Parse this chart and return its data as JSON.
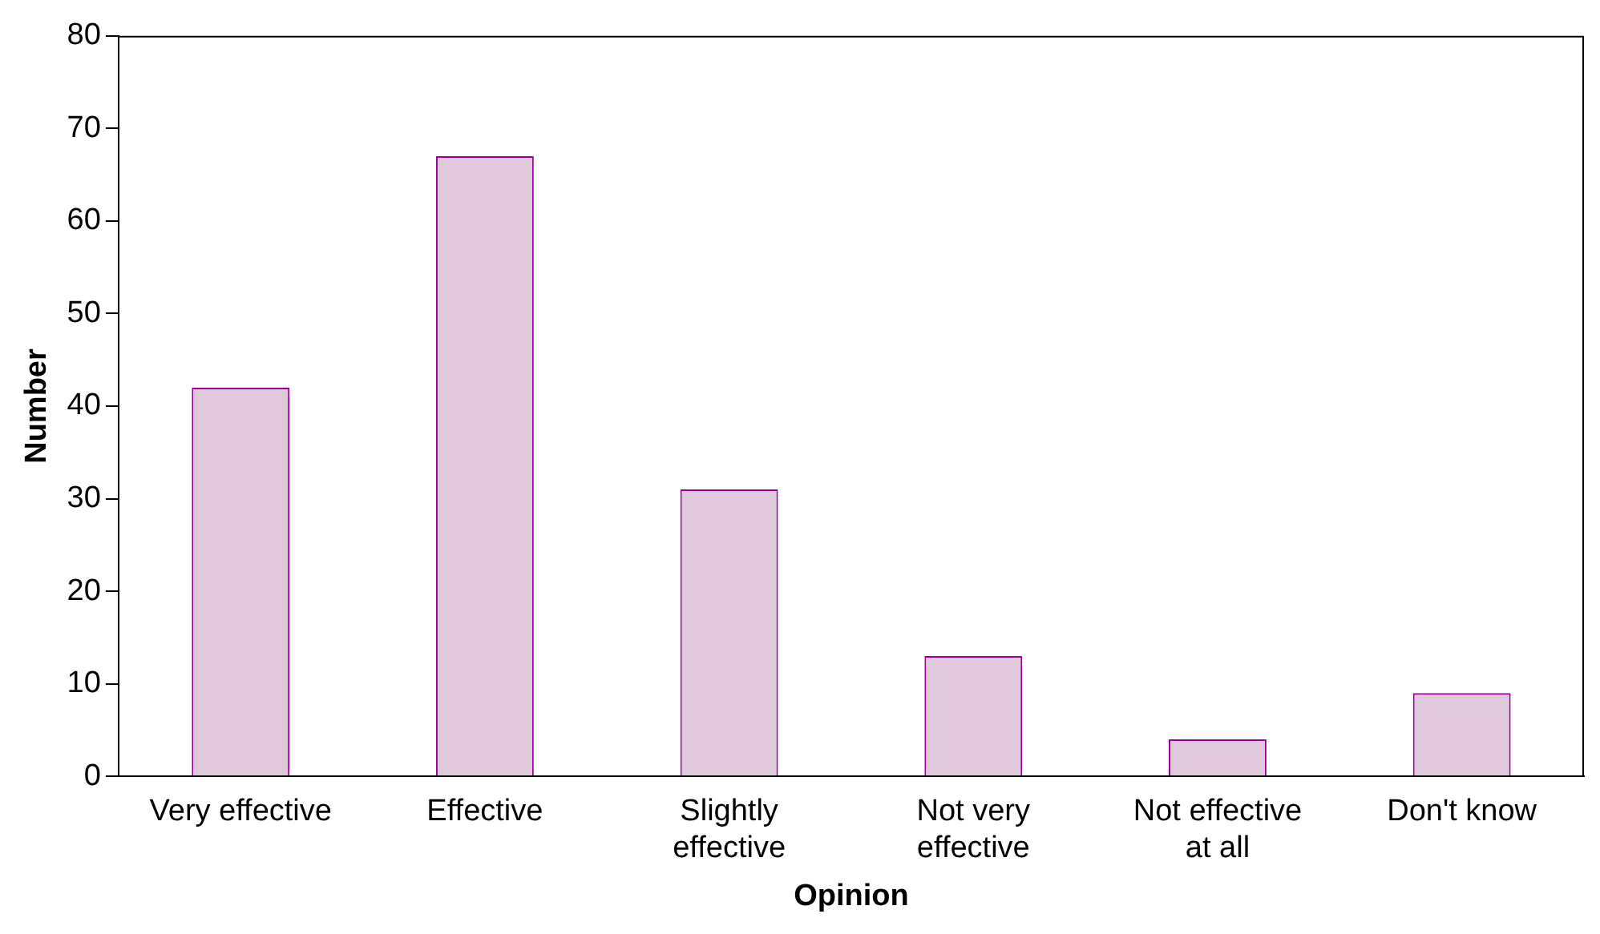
{
  "chart_data": {
    "type": "bar",
    "xlabel": "Opinion",
    "ylabel": "Number",
    "categories": [
      "Very effective",
      "Effective",
      "Slightly effective",
      "Not very effective",
      "Not effective at all",
      "Don't know"
    ],
    "values": [
      42,
      67,
      31,
      13,
      4,
      9
    ],
    "color": "#dfc7dc",
    "ylim": [
      0,
      80
    ],
    "yticks": [
      0,
      10,
      20,
      30,
      40,
      50,
      60,
      70,
      80
    ],
    "grid": false,
    "legend": false
  }
}
